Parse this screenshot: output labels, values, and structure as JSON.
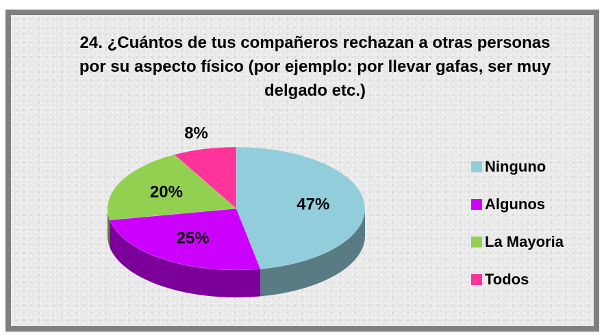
{
  "chart_data": {
    "type": "pie",
    "title": "24. ¿Cuántos de tus compañeros rechazan a otras personas por su aspecto físico (por ejemplo: por llevar gafas, ser muy delgado etc.)",
    "categories": [
      "Ninguno",
      "Algunos",
      "La Mayoria",
      "Todos"
    ],
    "values": [
      47,
      25,
      20,
      8
    ],
    "value_labels": [
      "47%",
      "25%",
      "20%",
      "8%"
    ],
    "colors": [
      "#92cddc",
      "#cc00ff",
      "#92d050",
      "#ff3399"
    ],
    "legend": "right"
  }
}
